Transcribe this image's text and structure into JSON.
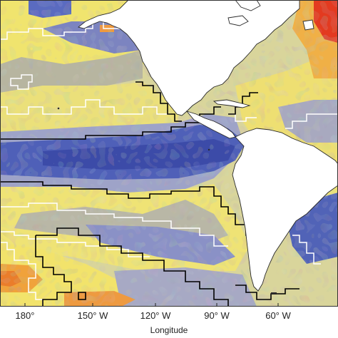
{
  "map": {
    "type": "gridded-field-map",
    "region": "Eastern Pacific and Americas",
    "colors": {
      "land": "#ffffff",
      "coast": "#2a2a2a",
      "contour_low": "#000000",
      "contour_high": "#ffffff",
      "ocean_field": [
        "#3f4fa8",
        "#5b6fc0",
        "#8c93c4",
        "#b9b9b9",
        "#d8d6a6",
        "#e8e17a",
        "#f2e66b",
        "#f3c14b",
        "#ef8a2e",
        "#e53a1f"
      ]
    },
    "x_axis": {
      "label": "Longitude",
      "ticks": [
        {
          "label": "180°",
          "lon": -180
        },
        {
          "label": "150° W",
          "lon": -150
        },
        {
          "label": "120° W",
          "lon": -120
        },
        {
          "label": "90° W",
          "lon": -90
        },
        {
          "label": "60° W",
          "lon": -60
        }
      ],
      "range": [
        -190,
        -30
      ]
    }
  }
}
